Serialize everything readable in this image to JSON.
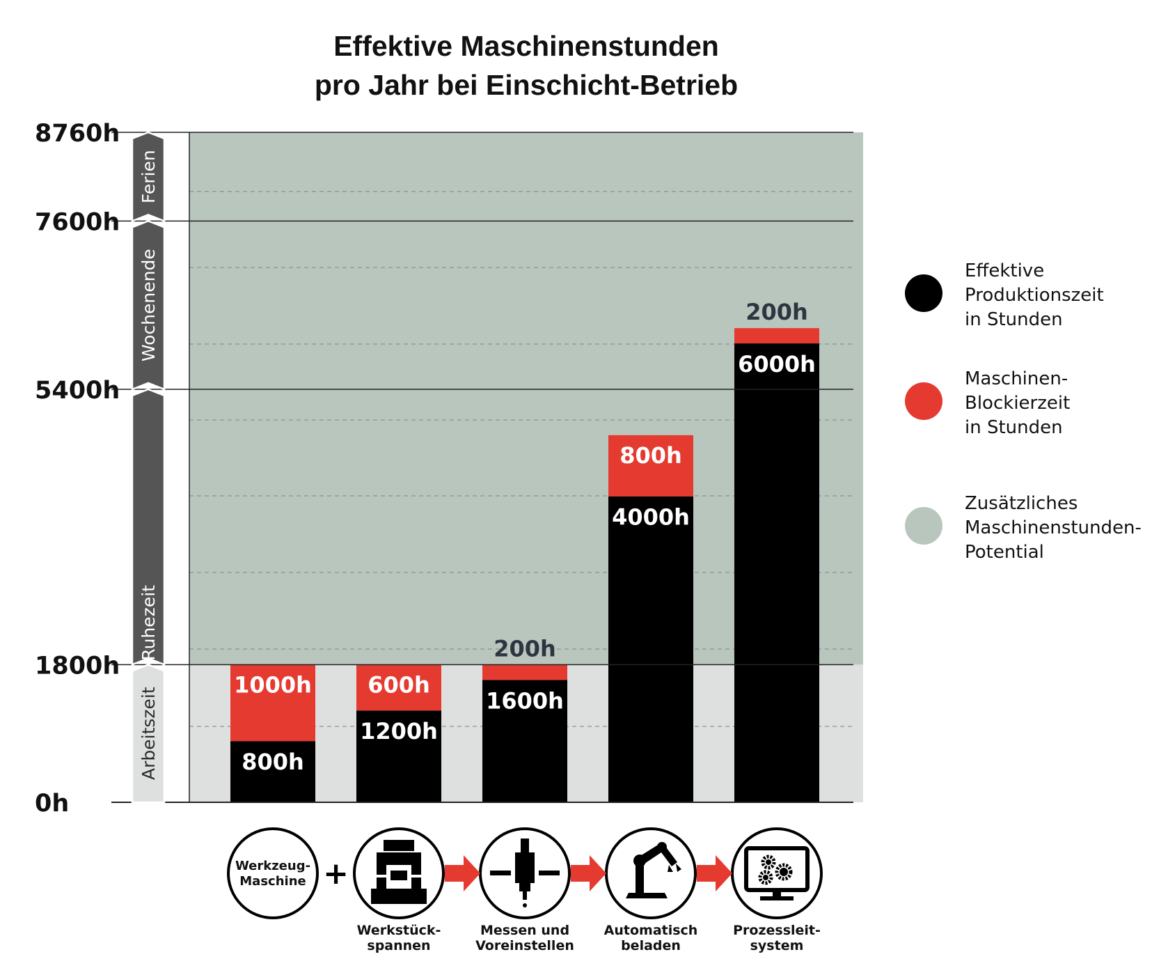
{
  "chart_data": {
    "type": "bar",
    "stacked": true,
    "title_lines": [
      "Effektive Maschinenstunden",
      "pro Jahr bei Einschicht-Betrieb"
    ],
    "ylim": [
      0,
      8760
    ],
    "y_ticks": [
      {
        "value": 0,
        "label": "0h"
      },
      {
        "value": 1800,
        "label": "1800h"
      },
      {
        "value": 5400,
        "label": "5400h"
      },
      {
        "value": 7600,
        "label": "7600h"
      },
      {
        "value": 8760,
        "label": "8760h"
      }
    ],
    "y_segments": [
      {
        "label": "Arbeitszeit",
        "from": 0,
        "to": 1800
      },
      {
        "label": "Ruhezeit",
        "from": 1800,
        "to": 5400
      },
      {
        "label": "Wochenende",
        "from": 5400,
        "to": 7600
      },
      {
        "label": "Ferien",
        "from": 7600,
        "to": 8760
      }
    ],
    "background_regions": [
      {
        "name": "Arbeitszeit",
        "from": 0,
        "to": 1800,
        "color": "#dde0de"
      },
      {
        "name": "potential",
        "from": 1800,
        "to": 8760,
        "color": "#b9c6be"
      }
    ],
    "categories": [
      "Werkzeug-Maschine",
      "Werkstückspannen",
      "Messen und Voreinstellen",
      "Automatisch beladen",
      "Prozessleitsystem"
    ],
    "series": [
      {
        "name": "Effektive Produktionszeit in Stunden",
        "color": "#000000",
        "values": [
          800,
          1200,
          1600,
          4000,
          6000
        ],
        "labels": [
          "800h",
          "1200h",
          "1600h",
          "4000h",
          "6000h"
        ]
      },
      {
        "name": "Maschinen-Blockierzeit in Stunden",
        "color": "#e53a30",
        "values": [
          1000,
          600,
          200,
          800,
          200
        ],
        "labels": [
          "1000h",
          "600h",
          "200h",
          "800h",
          "200h"
        ]
      }
    ],
    "legend": [
      {
        "lines": [
          "Effektive",
          "Produktionszeit",
          "in Stunden"
        ],
        "color": "#000000"
      },
      {
        "lines": [
          "Maschinen-",
          "Blockierzeit",
          "in Stunden"
        ],
        "color": "#e53a30"
      },
      {
        "lines": [
          "Zusätzliches",
          "Maschinenstunden-",
          "Potential"
        ],
        "color": "#b9c6be"
      }
    ],
    "legend_position": "right"
  },
  "steps": [
    {
      "icon": "machine-tool-icon",
      "inner_lines": [
        "Werkzeug-",
        "Maschine"
      ],
      "caption_lines": []
    },
    {
      "icon": "workpiece-clamping-icon",
      "inner_lines": [],
      "caption_lines": [
        "Werkstück-",
        "spannen"
      ]
    },
    {
      "icon": "measuring-presetting-icon",
      "inner_lines": [],
      "caption_lines": [
        "Messen und",
        "Voreinstellen"
      ]
    },
    {
      "icon": "robot-arm-icon",
      "inner_lines": [],
      "caption_lines": [
        "Automatisch",
        "beladen"
      ]
    },
    {
      "icon": "process-control-monitor-icon",
      "inner_lines": [],
      "caption_lines": [
        "Prozessleit-",
        "system"
      ]
    }
  ],
  "connectors": [
    "+",
    "arrow",
    "arrow",
    "arrow"
  ],
  "colors": {
    "black": "#000000",
    "red": "#e53a30",
    "potential": "#b9c6be",
    "work": "#dde0de",
    "arrow_dark": "#555555",
    "arrow_light": "#dde0de"
  }
}
